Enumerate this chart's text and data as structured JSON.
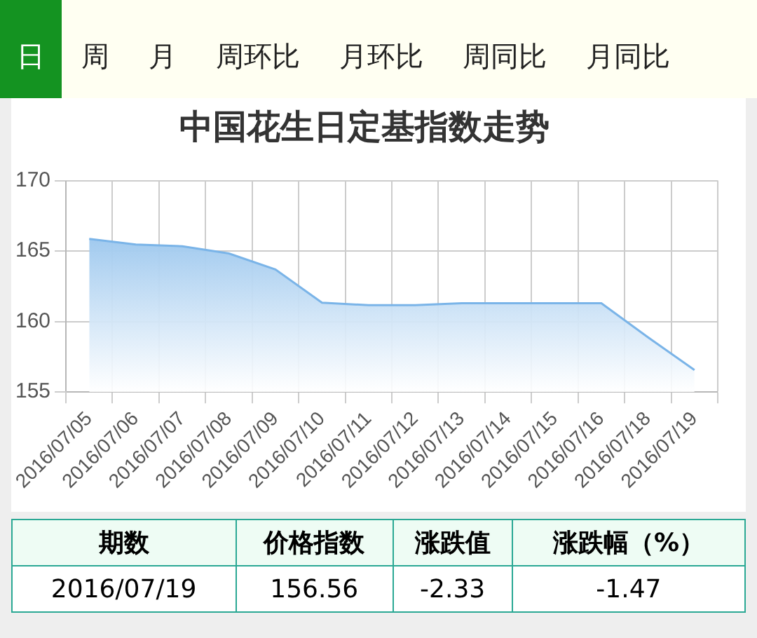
{
  "chart_data": {
    "type": "area",
    "title": "中国花生日定基指数走势",
    "categories": [
      "2016/07/05",
      "2016/07/06",
      "2016/07/07",
      "2016/07/08",
      "2016/07/09",
      "2016/07/10",
      "2016/07/11",
      "2016/07/12",
      "2016/07/13",
      "2016/07/14",
      "2016/07/15",
      "2016/07/16",
      "2016/07/18",
      "2016/07/19"
    ],
    "series": [
      {
        "color": "#7ab4e8",
        "values": [
          165.86,
          165.47,
          165.34,
          164.83,
          163.7,
          161.34,
          161.16,
          161.16,
          161.3,
          161.3,
          161.3,
          161.3,
          158.89,
          156.56
        ]
      }
    ],
    "ylim": [
      155,
      170
    ],
    "yticks": [
      155,
      160,
      165,
      170
    ],
    "grid": true,
    "legend": false,
    "marker": "none",
    "annotations": [
      "日",
      "周",
      "月",
      "周环比",
      "月环比",
      "周同比",
      "月同比",
      "期数",
      "价格指数",
      "涨跌值",
      "涨跌幅（%）",
      "2016/07/19",
      "156.56",
      "-2.33",
      "-1.47"
    ]
  }
}
